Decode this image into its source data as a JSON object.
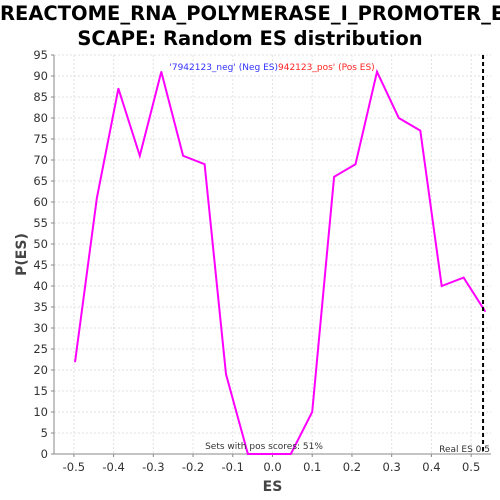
{
  "chart_data": {
    "type": "line",
    "title_lines": [
      "REACTOME_RNA_POLYMERASE_I_PROMOTER_E",
      "SCAPE: Random ES distribution"
    ],
    "xlabel": "ES",
    "ylabel": "P(ES)",
    "xlim": [
      -0.55,
      0.55
    ],
    "ylim": [
      0,
      95
    ],
    "xticks": [
      -0.5,
      -0.4,
      -0.3,
      -0.2,
      -0.1,
      0.0,
      0.1,
      0.2,
      0.3,
      0.4,
      0.5
    ],
    "xtick_labels": [
      "-0.5",
      "-0.4",
      "-0.3",
      "-0.2",
      "-0.1",
      "0.0",
      "0.1",
      "0.2",
      "0.3",
      "0.4",
      "0.5"
    ],
    "yticks": [
      0,
      5,
      10,
      15,
      20,
      25,
      30,
      35,
      40,
      45,
      50,
      55,
      60,
      65,
      70,
      75,
      80,
      85,
      90,
      95
    ],
    "grid": true,
    "legend": {
      "placement": "top-center",
      "entries": [
        {
          "label": "'7942123_neg' (Neg ES)",
          "color": "#3333ff"
        },
        {
          "label": "942123_pos' (Pos ES)",
          "color": "#ff2222"
        }
      ]
    },
    "series": [
      {
        "color": "#ff00ff",
        "x": [
          -0.497,
          -0.442,
          -0.388,
          -0.334,
          -0.28,
          -0.225,
          -0.171,
          -0.117,
          -0.062,
          -0.008,
          0.046,
          0.1,
          0.155,
          0.209,
          0.263,
          0.318,
          0.372,
          0.426,
          0.481,
          0.535
        ],
        "y": [
          22,
          61,
          87,
          71,
          91,
          71,
          69,
          19,
          0,
          0,
          0,
          10,
          66,
          69,
          91,
          80,
          77,
          40,
          42,
          34
        ]
      }
    ],
    "real_es": {
      "x": 0.53,
      "label": "Real ES 0.5"
    },
    "annotation": "Sets with pos scores: 51%"
  }
}
